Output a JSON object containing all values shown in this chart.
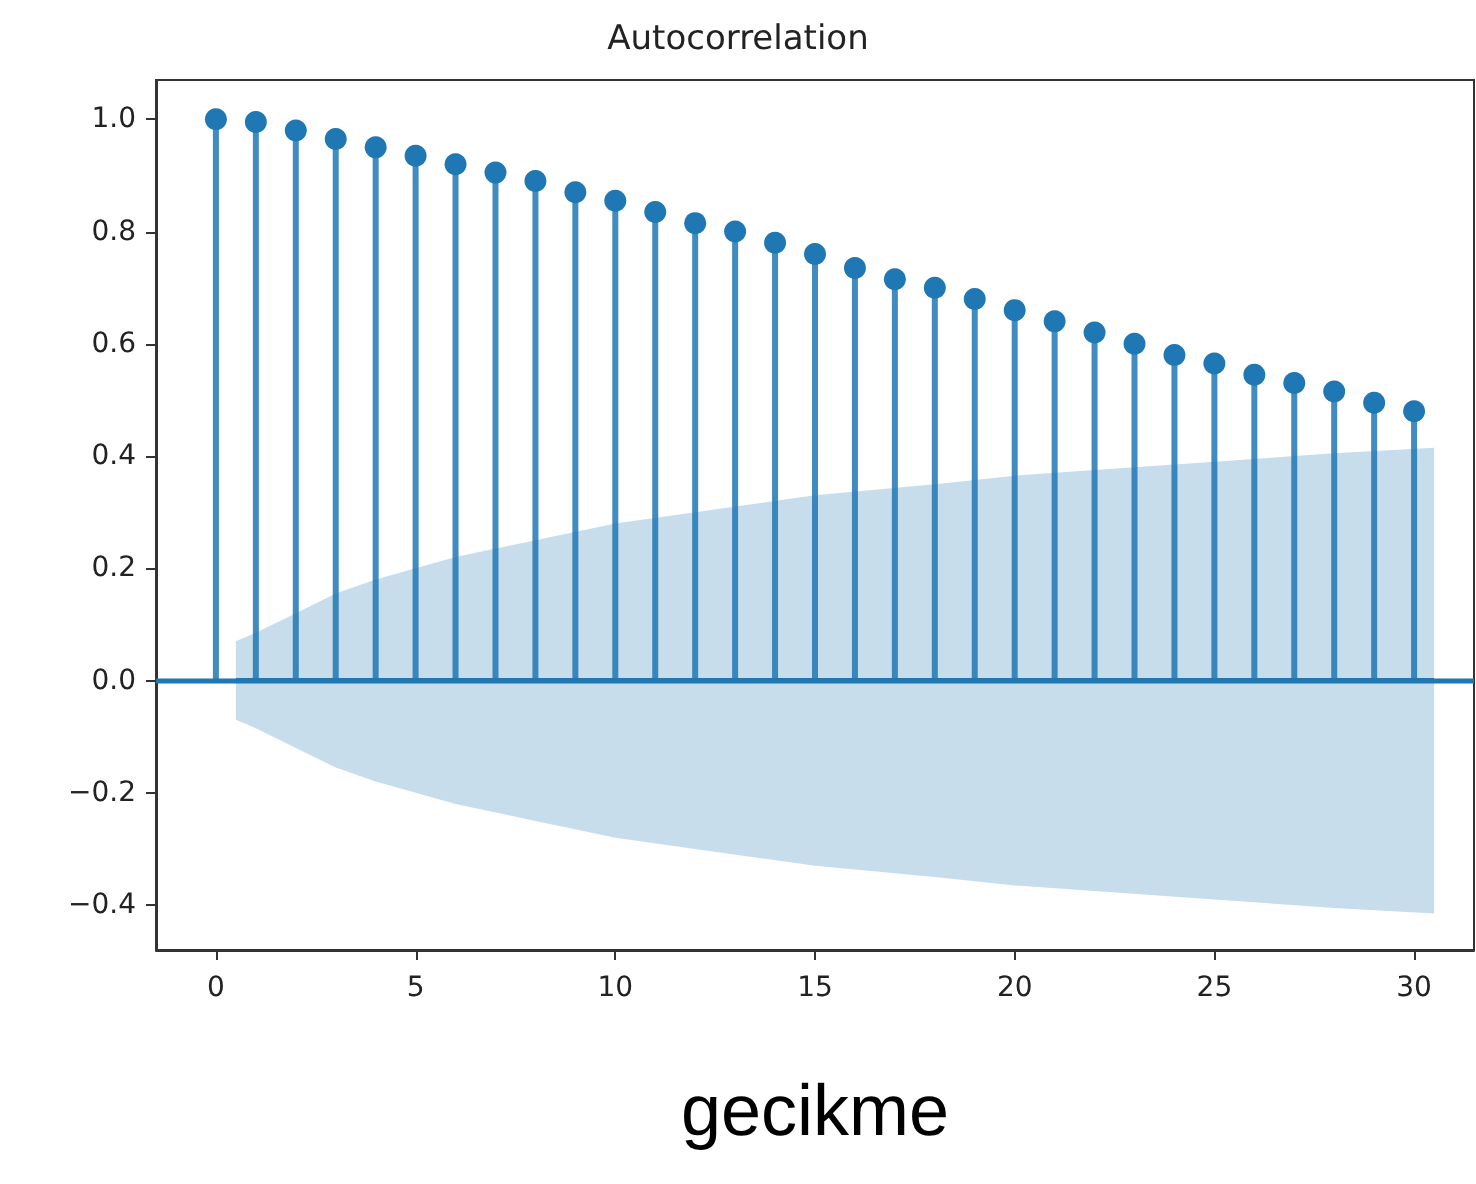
{
  "chart_data": {
    "type": "lollipop",
    "title": "Autocorrelation",
    "xlabel": "gecikme",
    "xlim": [
      -1.5,
      31.5
    ],
    "xticks": [
      0,
      5,
      10,
      15,
      20,
      25,
      30
    ],
    "ylim": [
      -0.48,
      1.07
    ],
    "yticks": [
      {
        "value": -0.4,
        "label": "−0.4"
      },
      {
        "value": -0.2,
        "label": "−0.2"
      },
      {
        "value": 0,
        "label": "0.0"
      },
      0.2,
      0.4,
      0.6,
      0.8,
      {
        "value": 1,
        "label": "1.0"
      }
    ],
    "grid": false,
    "marker": "circle",
    "series": [
      {
        "color": "#1f77b4",
        "x": [
          0,
          1,
          2,
          3,
          4,
          5,
          6,
          7,
          8,
          9,
          10,
          11,
          12,
          13,
          14,
          15,
          16,
          17,
          18,
          19,
          20,
          21,
          22,
          23,
          24,
          25,
          26,
          27,
          28,
          29,
          30
        ],
        "values": [
          1.0,
          0.995,
          0.98,
          0.965,
          0.95,
          0.935,
          0.92,
          0.905,
          0.89,
          0.87,
          0.855,
          0.835,
          0.815,
          0.8,
          0.78,
          0.76,
          0.735,
          0.715,
          0.7,
          0.68,
          0.66,
          0.64,
          0.62,
          0.6,
          0.58,
          0.565,
          0.545,
          0.53,
          0.515,
          0.495,
          0.48
        ]
      },
      {
        "type": "line",
        "color": "#1f77b4",
        "marker": "none",
        "x": [
          0.5,
          1,
          2,
          3,
          4,
          5,
          6,
          8,
          10,
          12,
          15,
          18,
          20,
          22,
          25,
          28,
          30.5
        ],
        "values": [
          0,
          0,
          0,
          0,
          0,
          0,
          0,
          0,
          0,
          0,
          0,
          0,
          0,
          0,
          0,
          0,
          0
        ],
        "lower": [
          -0.07,
          -0.085,
          -0.12,
          -0.155,
          -0.18,
          -0.2,
          -0.22,
          -0.25,
          -0.28,
          -0.3,
          -0.33,
          -0.35,
          -0.365,
          -0.375,
          -0.39,
          -0.405,
          -0.415
        ],
        "upper": [
          0.07,
          0.085,
          0.12,
          0.155,
          0.18,
          0.2,
          0.22,
          0.25,
          0.28,
          0.3,
          0.33,
          0.35,
          0.365,
          0.375,
          0.39,
          0.405,
          0.415
        ]
      }
    ],
    "ref_lines": [
      {
        "axis": "y",
        "value": 0,
        "color": "#1f77b4"
      }
    ]
  }
}
